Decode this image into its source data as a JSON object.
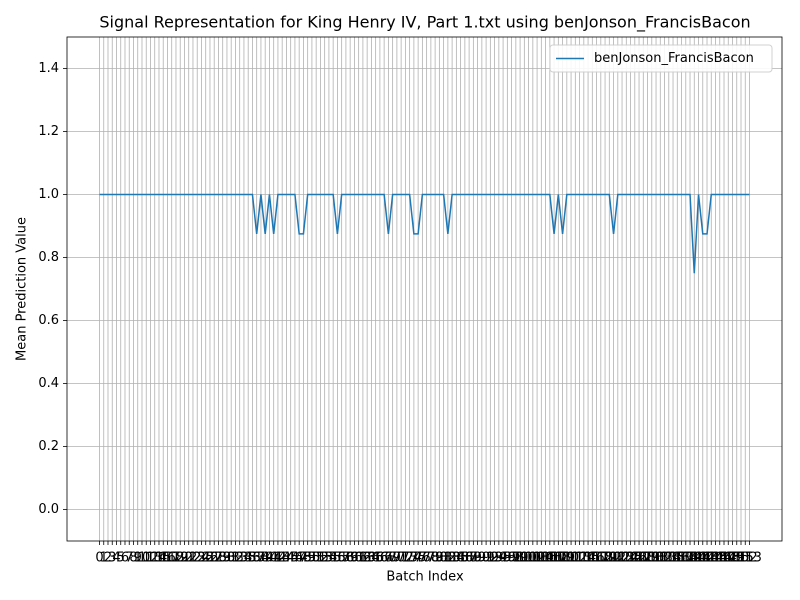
{
  "chart_data": {
    "type": "line",
    "title": "Signal Representation for King Henry IV, Part 1.txt using benJonson_FrancisBacon",
    "xlabel": "Batch Index",
    "ylabel": "Mean Prediction Value",
    "x": [
      0,
      1,
      2,
      3,
      4,
      5,
      6,
      7,
      8,
      9,
      10,
      11,
      12,
      13,
      14,
      15,
      16,
      17,
      18,
      19,
      20,
      21,
      22,
      23,
      24,
      25,
      26,
      27,
      28,
      29,
      30,
      31,
      32,
      33,
      34,
      35,
      36,
      37,
      38,
      39,
      40,
      41,
      42,
      43,
      44,
      45,
      46,
      47,
      48,
      49,
      50,
      51,
      52,
      53,
      54,
      55,
      56,
      57,
      58,
      59,
      60,
      61,
      62,
      63,
      64,
      65,
      66,
      67,
      68,
      69,
      70,
      71,
      72,
      73,
      74,
      75,
      76,
      77,
      78,
      79,
      80,
      81,
      82,
      83,
      84,
      85,
      86,
      87,
      88,
      89,
      90,
      91,
      92,
      93,
      94,
      95,
      96,
      97,
      98,
      99,
      100,
      101,
      102,
      103,
      104,
      105,
      106,
      107,
      108,
      109,
      110,
      111,
      112,
      113,
      114,
      115,
      116,
      117,
      118,
      119,
      120,
      121,
      122,
      123,
      124,
      125,
      126,
      127,
      128,
      129,
      130,
      131,
      132,
      133,
      134,
      135,
      136,
      137,
      138,
      139,
      140,
      141,
      142,
      143,
      144,
      145,
      146,
      147,
      148,
      149,
      150,
      151,
      152,
      153
    ],
    "series": [
      {
        "name": "benJonson_FrancisBacon",
        "color": "#1f77b4",
        "values": [
          1,
          1,
          1,
          1,
          1,
          1,
          1,
          1,
          1,
          1,
          1,
          1,
          1,
          1,
          1,
          1,
          1,
          1,
          1,
          1,
          1,
          1,
          1,
          1,
          1,
          1,
          1,
          1,
          1,
          1,
          1,
          1,
          1,
          1,
          1,
          1,
          1,
          0.875,
          1,
          0.875,
          1,
          0.875,
          1,
          1,
          1,
          1,
          1,
          0.875,
          0.875,
          1,
          1,
          1,
          1,
          1,
          1,
          1,
          0.875,
          1,
          1,
          1,
          1,
          1,
          1,
          1,
          1,
          1,
          1,
          1,
          0.875,
          1,
          1,
          1,
          1,
          1,
          0.875,
          0.875,
          1,
          1,
          1,
          1,
          1,
          1,
          0.875,
          1,
          1,
          1,
          1,
          1,
          1,
          1,
          1,
          1,
          1,
          1,
          1,
          1,
          1,
          1,
          1,
          1,
          1,
          1,
          1,
          1,
          1,
          1,
          1,
          0.875,
          1,
          0.875,
          1,
          1,
          1,
          1,
          1,
          1,
          1,
          1,
          1,
          1,
          1,
          0.875,
          1,
          1,
          1,
          1,
          1,
          1,
          1,
          1,
          1,
          1,
          1,
          1,
          1,
          1,
          1,
          1,
          1,
          1,
          0.75,
          1,
          0.875,
          0.875,
          1,
          1,
          1,
          1,
          1,
          1,
          1,
          1,
          1,
          1
        ]
      }
    ],
    "xlim": [
      -7.65,
      160.65
    ],
    "xticks": [
      0,
      1,
      2,
      3,
      4,
      5,
      6,
      7,
      8,
      9,
      10,
      11,
      12,
      13,
      14,
      15,
      16,
      17,
      18,
      19,
      20,
      21,
      22,
      23,
      24,
      25,
      26,
      27,
      28,
      29,
      30,
      31,
      32,
      33,
      34,
      35,
      36,
      37,
      38,
      39,
      40,
      41,
      42,
      43,
      44,
      45,
      46,
      47,
      48,
      49,
      50,
      51,
      52,
      53,
      54,
      55,
      56,
      57,
      58,
      59,
      60,
      61,
      62,
      63,
      64,
      65,
      66,
      67,
      68,
      69,
      70,
      71,
      72,
      73,
      74,
      75,
      76,
      77,
      78,
      79,
      80,
      81,
      82,
      83,
      84,
      85,
      86,
      87,
      88,
      89,
      90,
      91,
      92,
      93,
      94,
      95,
      96,
      97,
      98,
      99,
      100,
      101,
      102,
      103,
      104,
      105,
      106,
      107,
      108,
      109,
      110,
      111,
      112,
      113,
      114,
      115,
      116,
      117,
      118,
      119,
      120,
      121,
      122,
      123,
      124,
      125,
      126,
      127,
      128,
      129,
      130,
      131,
      132,
      133,
      134,
      135,
      136,
      137,
      138,
      139,
      140,
      141,
      142,
      143,
      144,
      145,
      146,
      147,
      148,
      149,
      150,
      151,
      152,
      153
    ],
    "ylim": [
      -0.1,
      1.5
    ],
    "yticks": [
      {
        "value": 0,
        "label": "0.0"
      },
      {
        "value": 0.2,
        "label": "0.2"
      },
      {
        "value": 0.4,
        "label": "0.4"
      },
      {
        "value": 0.6,
        "label": "0.6"
      },
      {
        "value": 0.8,
        "label": "0.8"
      },
      {
        "value": 1,
        "label": "1.0"
      },
      {
        "value": 1.2,
        "label": "1.2"
      },
      {
        "value": 1.4,
        "label": "1.4"
      }
    ],
    "grid": true,
    "legend": "upper right"
  }
}
